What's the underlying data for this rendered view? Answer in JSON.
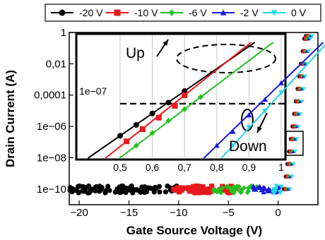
{
  "chart_data": {
    "type": "scatter",
    "xlabel": "Gate Source Voltage (V)",
    "ylabel": "Drain Current (A)",
    "xlim": [
      -21,
      4
    ],
    "ylim": [
      1e-11,
      1
    ],
    "yscale": "log",
    "xticks": [
      -20,
      -15,
      -10,
      -5,
      0
    ],
    "xtick_labels": [
      "−20",
      "−15",
      "−10",
      "−5",
      "0"
    ],
    "yticks": [
      1,
      0.01,
      0.0001,
      1e-06,
      1e-08,
      1e-10
    ],
    "ytick_labels": [
      "1",
      "0,01",
      "0,0001",
      "1e−06",
      "1e−08",
      "1e−10"
    ],
    "legend_position": "top",
    "series": [
      {
        "name": "-20 V",
        "color": "#000000",
        "marker": "circle",
        "noise_x": [
          -21,
          -9.5
        ],
        "floor": 1e-10,
        "onset_x": [
          0.5,
          0.55,
          0.6,
          0.65,
          0.7
        ],
        "onset_y": [
          5e-10,
          3e-09,
          2e-08,
          1.2e-07,
          8e-07
        ]
      },
      {
        "name": "-10 V",
        "color": "#e8181c",
        "marker": "square",
        "noise_x": [
          -10.5,
          -4.0
        ],
        "floor": 1e-10,
        "onset_x": [
          0.52,
          0.57,
          0.62,
          0.67,
          0.7
        ],
        "onset_y": [
          2e-10,
          1.5e-09,
          1e-08,
          7e-08,
          4e-07
        ]
      },
      {
        "name": "-6 V",
        "color": "#22c020",
        "marker": "diamond",
        "noise_x": [
          -6.5,
          -2.0
        ],
        "floor": 1e-10,
        "onset_x": [
          0.55,
          0.6,
          0.65,
          0.7,
          0.75
        ],
        "onset_y": [
          1e-10,
          8e-10,
          6e-09,
          4e-08,
          3e-07
        ]
      },
      {
        "name": "-2 V",
        "color": "#1a1adc",
        "marker": "triangle",
        "noise_x": [
          -2.5,
          0.2
        ],
        "floor": 1e-10,
        "onset_x": [
          0.8,
          0.85,
          0.9,
          0.95,
          1.0
        ],
        "onset_y": [
          1e-10,
          1e-09,
          1.5e-08,
          2e-07,
          3e-06
        ]
      },
      {
        "name": "0 V",
        "color": "#22d8e8",
        "marker": "triangle-down",
        "noise_x": [
          -0.5,
          0.6
        ],
        "floor": 1e-10,
        "onset_x": [
          0.85,
          0.9,
          0.95,
          1.0
        ],
        "onset_y": [
          1e-10,
          2e-09,
          3e-08,
          6e-07
        ]
      }
    ],
    "inset": {
      "xlim": [
        0.5,
        1.0
      ],
      "xticks": [
        0.5,
        0.6,
        0.7,
        0.8,
        0.9,
        1.0
      ],
      "xtick_labels": [
        "0,5",
        "0,6",
        "0,7",
        "0,8",
        "0,9",
        "1"
      ],
      "ytick_labels": [
        "1e−07"
      ],
      "reference_line_y": 1e-07,
      "annotations": [
        "Up",
        "Down"
      ]
    }
  }
}
